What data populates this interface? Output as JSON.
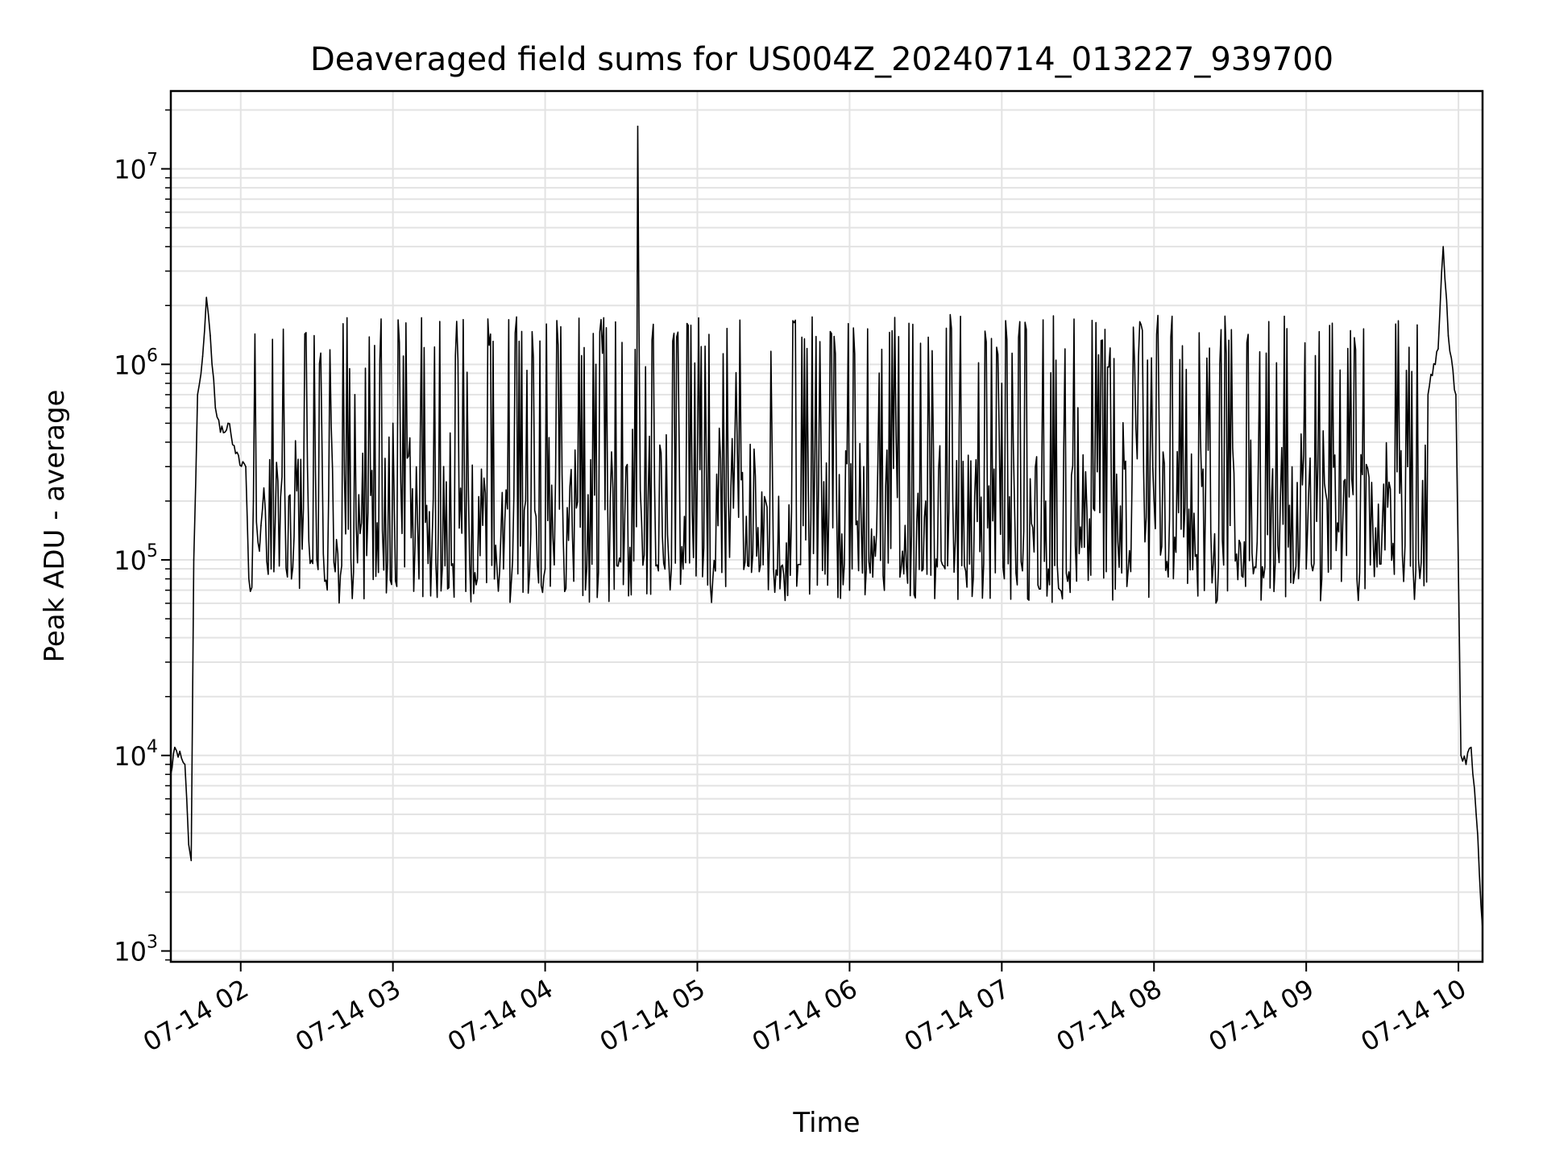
{
  "chart_data": {
    "type": "line",
    "title": "Deaveraged field sums for US004Z_20240714_013227_939700",
    "xlabel": "Time",
    "ylabel": "Peak ADU - average",
    "yscale": "log",
    "ylim": [
      880,
      25000000
    ],
    "xlim": [
      "2024-07-14T01:32:27",
      "2024-07-14T10:09:30"
    ],
    "grid": true,
    "line_color": "#000000",
    "x_ticks": [
      {
        "label": "07-14 02",
        "time": "2024-07-14T02:00:00"
      },
      {
        "label": "07-14 03",
        "time": "2024-07-14T03:00:00"
      },
      {
        "label": "07-14 04",
        "time": "2024-07-14T04:00:00"
      },
      {
        "label": "07-14 05",
        "time": "2024-07-14T05:00:00"
      },
      {
        "label": "07-14 06",
        "time": "2024-07-14T06:00:00"
      },
      {
        "label": "07-14 07",
        "time": "2024-07-14T07:00:00"
      },
      {
        "label": "07-14 08",
        "time": "2024-07-14T08:00:00"
      },
      {
        "label": "07-14 09",
        "time": "2024-07-14T09:00:00"
      },
      {
        "label": "07-14 10",
        "time": "2024-07-14T10:00:00"
      }
    ],
    "y_ticks": [
      {
        "base": "10",
        "exp": "3",
        "value": 1000
      },
      {
        "base": "10",
        "exp": "4",
        "value": 10000
      },
      {
        "base": "10",
        "exp": "5",
        "value": 100000
      },
      {
        "base": "10",
        "exp": "6",
        "value": 1000000
      },
      {
        "base": "10",
        "exp": "7",
        "value": 10000000
      }
    ],
    "series": [
      {
        "points": [
          [
            "2024-07-14T01:32:27",
            8000
          ],
          [
            "2024-07-14T01:34:00",
            11000
          ],
          [
            "2024-07-14T01:36:00",
            10500
          ],
          [
            "2024-07-14T01:38:00",
            9000
          ],
          [
            "2024-07-14T01:39:30",
            3500
          ],
          [
            "2024-07-14T01:40:30",
            2900
          ],
          [
            "2024-07-14T01:41:30",
            100000
          ],
          [
            "2024-07-14T01:43:00",
            700000
          ],
          [
            "2024-07-14T01:45:00",
            1100000
          ],
          [
            "2024-07-14T01:46:30",
            2200000
          ],
          [
            "2024-07-14T01:48:00",
            1400000
          ],
          [
            "2024-07-14T01:50:00",
            600000
          ],
          [
            "2024-07-14T01:52:00",
            450000
          ],
          [
            "2024-07-14T01:55:00",
            500000
          ],
          [
            "2024-07-14T01:58:00",
            350000
          ],
          [
            "2024-07-14T02:02:00",
            300000
          ],
          [
            "2024-07-14T02:05:00",
            200000
          ],
          [
            "2024-07-14T02:08:00",
            150000
          ],
          [
            "2024-07-14T02:12:00",
            90000
          ],
          [
            "2024-07-14T02:20:00",
            80000
          ],
          [
            "2024-07-14T02:30:00",
            100000
          ],
          [
            "2024-07-14T02:45:00",
            700000
          ],
          [
            "2024-07-14T03:00:00",
            500000
          ],
          [
            "2024-07-14T03:20:00",
            300000
          ],
          [
            "2024-07-14T03:40:00",
            80000
          ],
          [
            "2024-07-14T04:00:00",
            90000
          ],
          [
            "2024-07-14T04:20:00",
            1000000
          ],
          [
            "2024-07-14T04:36:30",
            16500000
          ],
          [
            "2024-07-14T05:00:00",
            300000
          ],
          [
            "2024-07-14T05:30:00",
            90000
          ],
          [
            "2024-07-14T06:00:00",
            70000
          ],
          [
            "2024-07-14T06:30:00",
            200000
          ],
          [
            "2024-07-14T07:00:00",
            800000
          ],
          [
            "2024-07-14T07:30:00",
            600000
          ],
          [
            "2024-07-14T08:00:00",
            200000
          ],
          [
            "2024-07-14T08:30:00",
            150000
          ],
          [
            "2024-07-14T09:00:00",
            90000
          ],
          [
            "2024-07-14T09:20:00",
            80000
          ],
          [
            "2024-07-14T09:30:00",
            150000
          ],
          [
            "2024-07-14T09:40:00",
            300000
          ],
          [
            "2024-07-14T09:48:00",
            700000
          ],
          [
            "2024-07-14T09:52:00",
            1200000
          ],
          [
            "2024-07-14T09:54:00",
            4000000
          ],
          [
            "2024-07-14T09:56:00",
            1400000
          ],
          [
            "2024-07-14T09:59:00",
            700000
          ],
          [
            "2024-07-14T10:01:00",
            10000
          ],
          [
            "2024-07-14T10:03:00",
            9000
          ],
          [
            "2024-07-14T10:05:00",
            11000
          ],
          [
            "2024-07-14T10:07:00",
            5000
          ],
          [
            "2024-07-14T10:09:30",
            1300
          ]
        ]
      }
    ]
  }
}
